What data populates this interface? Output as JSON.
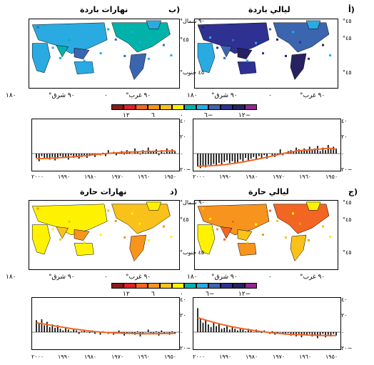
{
  "colors": {
    "scale": [
      "#8b1a1a",
      "#e01f26",
      "#f26522",
      "#f7941d",
      "#f9c11a",
      "#fff200",
      "#00b2a9",
      "#29abe2",
      "#3c65b0",
      "#2e3192",
      "#262262",
      "#92278f"
    ],
    "line": "#f26522",
    "bar": "#000000",
    "land_warm": "#f7941d",
    "land_yellow": "#fff200",
    "land_cool": "#29abe2",
    "land_blue": "#2e3192"
  },
  "panels": {
    "a": {
      "label": "أ)",
      "title": "ليالي باردة"
    },
    "b": {
      "label": "ب)",
      "title": "نهارات باردة"
    },
    "c": {
      "label": "ج)",
      "title": "ليالي حارة"
    },
    "d": {
      "label": "د)",
      "title": "نهارات حارة"
    }
  },
  "map_lat_labels": {
    "north": "°٩٠ شمال",
    "n45": "°٤٥",
    "s45": "°٤٥ جنوب",
    "s45_alt": "°٤٥"
  },
  "map_lon_labels": {
    "l180": "١٨٠",
    "w90": "°٩٠ غرب",
    "zero": "٠",
    "e90": "°٩٠ شرق"
  },
  "legend_ticks": {
    "top": [
      "١٢−",
      "٦−",
      "٠",
      "٦",
      "١٢"
    ],
    "bottom": [
      "١٢−",
      "٦−",
      "٠",
      "٦",
      "١٢"
    ]
  },
  "ts_y_ticks": [
    "٤٠",
    "٢٠",
    "٠",
    "٢٠−"
  ],
  "ts_x_ticks": [
    "١٩٥٠",
    "١٩٦٠",
    "١٩٧٠",
    "١٩٨٠",
    "١٩٩٠",
    "٢٠٠٠"
  ],
  "chart_data": [
    {
      "type": "bar",
      "panel": "a",
      "title": "ليالي باردة",
      "x": [
        1951,
        1952,
        1953,
        1954,
        1955,
        1956,
        1957,
        1958,
        1959,
        1960,
        1961,
        1962,
        1963,
        1964,
        1965,
        1966,
        1967,
        1968,
        1969,
        1970,
        1971,
        1972,
        1973,
        1974,
        1975,
        1976,
        1977,
        1978,
        1979,
        1980,
        1981,
        1982,
        1983,
        1984,
        1985,
        1986,
        1987,
        1988,
        1989,
        1990,
        1991,
        1992,
        1993,
        1994,
        1995,
        1996,
        1997,
        1998,
        1999,
        2000,
        2001,
        2002,
        2003
      ],
      "values": [
        6,
        8,
        5,
        10,
        4,
        7,
        3,
        9,
        6,
        5,
        8,
        4,
        6,
        3,
        5,
        7,
        2,
        4,
        3,
        1,
        -2,
        5,
        -1,
        -4,
        -3,
        0,
        -6,
        -2,
        -5,
        -3,
        -7,
        -4,
        -6,
        -8,
        -5,
        -9,
        -7,
        -10,
        -12,
        -9,
        -11,
        -8,
        -10,
        -13,
        -11,
        -14,
        -12,
        -15,
        -13,
        -16,
        -14,
        -17,
        -15
      ],
      "smooth": [
        5,
        5.5,
        6,
        6,
        5.8,
        5.5,
        5.2,
        5,
        4.8,
        4.6,
        4.4,
        4.2,
        4,
        3.7,
        3.3,
        2.9,
        2.4,
        1.9,
        1.3,
        0.7,
        0,
        -0.7,
        -1.4,
        -2.1,
        -2.8,
        -3.5,
        -4.2,
        -4.9,
        -5.6,
        -6.2,
        -6.8,
        -7.4,
        -8,
        -8.6,
        -9.2,
        -9.8,
        -10.3,
        -10.8,
        -11.3,
        -11.7,
        -12.1,
        -12.5,
        -12.9,
        -13.2,
        -13.5,
        -13.8,
        -14,
        -14.2,
        -14.4,
        -14.5,
        -14.6,
        -14.7,
        -14.8
      ],
      "ylim": [
        -20,
        40
      ]
    },
    {
      "type": "bar",
      "panel": "b",
      "title": "نهارات باردة",
      "x": [
        1951,
        1952,
        1953,
        1954,
        1955,
        1956,
        1957,
        1958,
        1959,
        1960,
        1961,
        1962,
        1963,
        1964,
        1965,
        1966,
        1967,
        1968,
        1969,
        1970,
        1971,
        1972,
        1973,
        1974,
        1975,
        1976,
        1977,
        1978,
        1979,
        1980,
        1981,
        1982,
        1983,
        1984,
        1985,
        1986,
        1987,
        1988,
        1989,
        1990,
        1991,
        1992,
        1993,
        1994,
        1995,
        1996,
        1997,
        1998,
        1999,
        2000,
        2001,
        2002,
        2003
      ],
      "values": [
        3,
        5,
        2,
        6,
        1,
        4,
        -2,
        5,
        3,
        2,
        7,
        1,
        4,
        -1,
        3,
        6,
        0,
        2,
        4,
        -1,
        3,
        1,
        -2,
        2,
        0,
        4,
        -3,
        1,
        -2,
        0,
        -4,
        -1,
        -3,
        -5,
        -2,
        -4,
        -6,
        -3,
        -5,
        -2,
        -7,
        -4,
        -5,
        -3,
        -6,
        -8,
        -4,
        -7,
        -5,
        -6,
        -3,
        -9,
        -5
      ],
      "smooth": [
        3,
        3,
        3,
        3,
        3,
        2.8,
        2.7,
        2.6,
        2.6,
        2.5,
        2.5,
        2.4,
        2.3,
        2.2,
        2.1,
        2,
        1.9,
        1.8,
        1.7,
        1.5,
        1.3,
        1.1,
        0.9,
        0.7,
        0.5,
        0.2,
        0,
        -0.3,
        -0.6,
        -0.9,
        -1.2,
        -1.6,
        -2,
        -2.3,
        -2.6,
        -2.9,
        -3.2,
        -3.5,
        -3.7,
        -3.9,
        -4.2,
        -4.4,
        -4.6,
        -4.8,
        -5,
        -5.2,
        -5.3,
        -5.5,
        -5.6,
        -5.7,
        -5.8,
        -5.9,
        -6
      ],
      "ylim": [
        -20,
        40
      ]
    },
    {
      "type": "bar",
      "panel": "c",
      "title": "ليالي حارة",
      "x": [
        1951,
        1952,
        1953,
        1954,
        1955,
        1956,
        1957,
        1958,
        1959,
        1960,
        1961,
        1962,
        1963,
        1964,
        1965,
        1966,
        1967,
        1968,
        1969,
        1970,
        1971,
        1972,
        1973,
        1974,
        1975,
        1976,
        1977,
        1978,
        1979,
        1980,
        1981,
        1982,
        1983,
        1984,
        1985,
        1986,
        1987,
        1988,
        1989,
        1990,
        1991,
        1992,
        1993,
        1994,
        1995,
        1996,
        1997,
        1998,
        1999,
        2000,
        2001,
        2002,
        2003
      ],
      "values": [
        -4,
        -2,
        -5,
        -3,
        -6,
        -2,
        -4,
        -7,
        -3,
        -5,
        -2,
        -4,
        -3,
        -6,
        -2,
        -5,
        -3,
        -4,
        -1,
        -3,
        -2,
        0,
        -1,
        -3,
        1,
        -2,
        0,
        2,
        -1,
        1,
        3,
        0,
        2,
        4,
        1,
        3,
        5,
        2,
        4,
        6,
        3,
        8,
        5,
        4,
        10,
        7,
        12,
        6,
        9,
        14,
        11,
        16,
        28
      ],
      "smooth": [
        -4,
        -4,
        -4,
        -4,
        -3.9,
        -3.8,
        -3.8,
        -3.7,
        -3.6,
        -3.5,
        -3.4,
        -3.3,
        -3.2,
        -3.1,
        -3,
        -2.9,
        -2.8,
        -2.6,
        -2.4,
        -2.2,
        -2,
        -1.7,
        -1.4,
        -1.1,
        -0.8,
        -0.5,
        -0.1,
        0.3,
        0.7,
        1.1,
        1.5,
        2,
        2.5,
        3,
        3.5,
        4,
        4.5,
        5.1,
        5.7,
        6.3,
        6.9,
        7.6,
        8.3,
        9,
        9.8,
        10.6,
        11.4,
        12.3,
        13.2,
        14.1,
        15,
        16,
        17
      ],
      "ylim": [
        -20,
        40
      ]
    },
    {
      "type": "bar",
      "panel": "d",
      "title": "نهارات حارة",
      "x": [
        1951,
        1952,
        1953,
        1954,
        1955,
        1956,
        1957,
        1958,
        1959,
        1960,
        1961,
        1962,
        1963,
        1964,
        1965,
        1966,
        1967,
        1968,
        1969,
        1970,
        1971,
        1972,
        1973,
        1974,
        1975,
        1976,
        1977,
        1978,
        1979,
        1980,
        1981,
        1982,
        1983,
        1984,
        1985,
        1986,
        1987,
        1988,
        1989,
        1990,
        1991,
        1992,
        1993,
        1994,
        1995,
        1996,
        1997,
        1998,
        1999,
        2000,
        2001,
        2002,
        2003
      ],
      "values": [
        -2,
        1,
        -3,
        0,
        -1,
        2,
        -4,
        1,
        -2,
        -1,
        3,
        0,
        -2,
        -5,
        1,
        -3,
        -1,
        0,
        -2,
        -4,
        -1,
        2,
        -1,
        -3,
        0,
        -2,
        -1,
        1,
        -3,
        0,
        -2,
        2,
        -1,
        0,
        3,
        1,
        -2,
        2,
        4,
        1,
        3,
        6,
        2,
        4,
        8,
        5,
        9,
        6,
        12,
        8,
        15,
        10,
        14
      ],
      "smooth": [
        -1.5,
        -1.5,
        -1.6,
        -1.6,
        -1.7,
        -1.7,
        -1.7,
        -1.8,
        -1.8,
        -1.8,
        -1.8,
        -1.8,
        -1.8,
        -1.8,
        -1.7,
        -1.7,
        -1.6,
        -1.5,
        -1.4,
        -1.3,
        -1.2,
        -1.1,
        -1,
        -0.9,
        -0.7,
        -0.5,
        -0.3,
        -0.1,
        0.1,
        0.4,
        0.7,
        1,
        1.3,
        1.7,
        2.1,
        2.5,
        2.9,
        3.3,
        3.7,
        4.2,
        4.7,
        5.2,
        5.7,
        6.2,
        6.7,
        7.2,
        7.8,
        8.3,
        8.8,
        9.4,
        9.9,
        10.4,
        11
      ],
      "ylim": [
        -20,
        40
      ]
    }
  ]
}
